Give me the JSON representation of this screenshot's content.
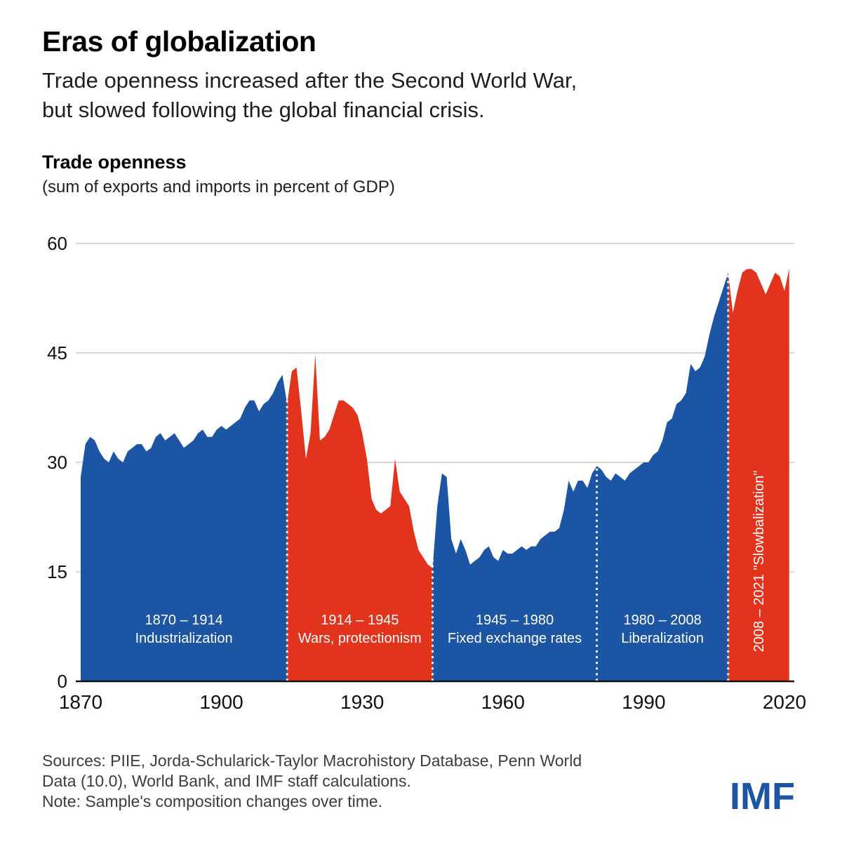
{
  "header": {
    "title": "Eras of globalization",
    "subtitle_line1": "Trade openness increased after the Second World War,",
    "subtitle_line2": "but slowed following the global financial crisis."
  },
  "chart_label": {
    "title": "Trade openness",
    "subtitle": "(sum of exports and imports in percent of GDP)"
  },
  "chart_data": {
    "type": "area",
    "title": "Trade openness",
    "ylabel": "sum of exports and imports in percent of GDP",
    "ylim": [
      0,
      60
    ],
    "yticks": [
      0,
      15,
      30,
      45,
      60
    ],
    "xticks": [
      1870,
      1900,
      1930,
      1960,
      1990,
      2020
    ],
    "x_start": 1870,
    "x_end": 2021,
    "grid_on": true,
    "legend": "none",
    "colors": {
      "blue": "#1b55a4",
      "red": "#e2331d",
      "grid": "#cccccc",
      "axis": "#111111",
      "boundary": "#ffffff",
      "label_text": "#ffffff"
    },
    "values": [
      28,
      32.5,
      33.5,
      33,
      31.5,
      30.5,
      30,
      31.5,
      30.5,
      30,
      31.5,
      32,
      32.5,
      32.5,
      31.5,
      32,
      33.5,
      34,
      33,
      33.5,
      34,
      33,
      32,
      32.5,
      33,
      34,
      34.5,
      33.5,
      33.5,
      34.5,
      35,
      34.5,
      35,
      35.5,
      36,
      37.5,
      38.5,
      38.5,
      37,
      38,
      38.5,
      39.5,
      41,
      42,
      38,
      42.5,
      43,
      37,
      30.5,
      34,
      44.8,
      33,
      33.5,
      34.5,
      36.5,
      38.5,
      38.5,
      38,
      37.5,
      36.5,
      34,
      30.5,
      25,
      23.5,
      23,
      23.5,
      24,
      30.5,
      26,
      25,
      24,
      20.5,
      18,
      17,
      16,
      15.5,
      24,
      28.5,
      28,
      19.5,
      17.5,
      19.5,
      18,
      16,
      16.5,
      17,
      18,
      18.5,
      17,
      16.5,
      18,
      17.5,
      17.5,
      18,
      18.5,
      18,
      18.5,
      18.5,
      19.5,
      20,
      20.5,
      20.5,
      21,
      23.5,
      27.5,
      26,
      27.5,
      27.5,
      26.5,
      28.5,
      29.5,
      29,
      28,
      27.5,
      28.5,
      28,
      27.5,
      28.5,
      29,
      29.5,
      30,
      30,
      31,
      31.5,
      33,
      35.5,
      36,
      38,
      38.5,
      39.5,
      43.5,
      42.5,
      43,
      44.5,
      47.5,
      50,
      52,
      54,
      56,
      50.5,
      53.5,
      56,
      56.5,
      56.5,
      56,
      54.5,
      53,
      54.5,
      56,
      55.5,
      53.5,
      56.5
    ],
    "eras": [
      {
        "start": 1870,
        "end": 1914,
        "color": "blue",
        "orientation": "horizontal",
        "label": [
          "1870 – 1914",
          "Industrialization"
        ]
      },
      {
        "start": 1914,
        "end": 1945,
        "color": "red",
        "orientation": "horizontal",
        "label": [
          "1914 – 1945",
          "Wars, protectionism"
        ]
      },
      {
        "start": 1945,
        "end": 1980,
        "color": "blue",
        "orientation": "horizontal",
        "label": [
          "1945 – 1980",
          "Fixed exchange rates"
        ]
      },
      {
        "start": 1980,
        "end": 2008,
        "color": "blue",
        "orientation": "horizontal",
        "label": [
          "1980 – 2008",
          "Liberalization"
        ]
      },
      {
        "start": 2008,
        "end": 2021,
        "color": "red",
        "orientation": "vertical",
        "label": [
          "2008 – 2021 \"Slowbalization\""
        ]
      }
    ],
    "boundaries": [
      1914,
      1945,
      1980,
      2008
    ]
  },
  "footer": {
    "sources_line1": "Sources: PIIE, Jorda-Schularick-Taylor Macrohistory Database, Penn World",
    "sources_line2": "Data (10.0), World Bank, and IMF staff calculations.",
    "note": "Note: Sample's composition changes over time.",
    "logo": "IMF"
  }
}
